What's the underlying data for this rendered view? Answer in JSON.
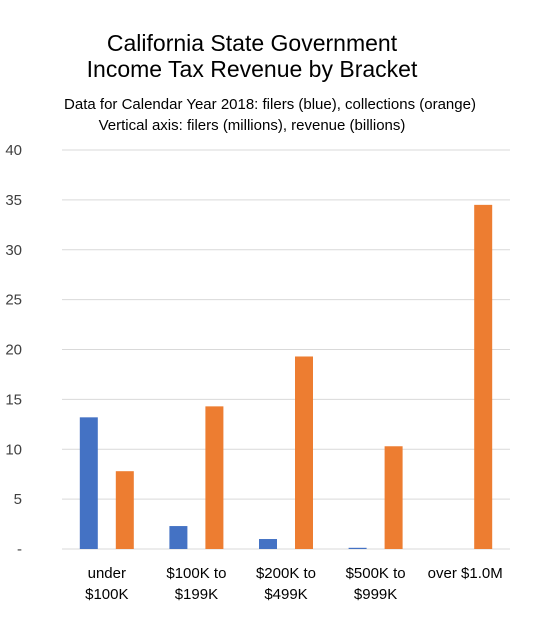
{
  "chart_data": {
    "type": "bar",
    "title": [
      "California State Government",
      "Income Tax Revenue by Bracket"
    ],
    "subtitle": [
      "Data for Calendar Year 2018: filers (blue), collections (orange)",
      "Vertical axis: filers (millions), revenue (billions)"
    ],
    "categories": [
      [
        "under",
        "$100K"
      ],
      [
        "$100K to",
        "$199K"
      ],
      [
        "$200K to",
        "$499K"
      ],
      [
        "$500K to",
        "$999K"
      ],
      [
        "over $1.0M"
      ]
    ],
    "series": [
      {
        "color": "#4472c4",
        "values": [
          13.2,
          2.3,
          1.0,
          0.1,
          0.0
        ]
      },
      {
        "color": "#ed7d31",
        "values": [
          7.8,
          14.3,
          19.3,
          10.3,
          34.5
        ]
      }
    ],
    "ylim": [
      0,
      40
    ],
    "yticks": [
      0,
      5,
      10,
      15,
      20,
      25,
      30,
      35,
      40
    ],
    "ytick_labels": [
      "-",
      "5",
      "10",
      "15",
      "20",
      "25",
      "30",
      "35",
      "40"
    ],
    "grid": true,
    "legend": "none"
  }
}
